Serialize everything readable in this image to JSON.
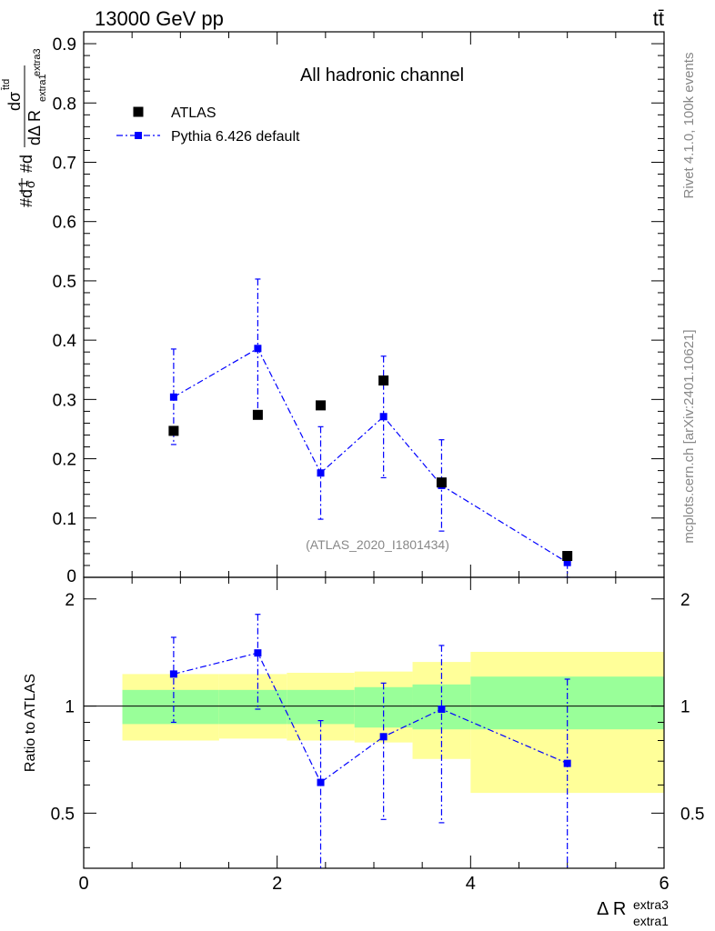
{
  "header": {
    "energy_label": "13000 GeV pp",
    "process_label": "tt̄"
  },
  "side_labels": {
    "rivet": "Rivet 4.1.0,  100k events",
    "mcplots": "mcplots.cern.ch [arXiv:2401.10621]"
  },
  "chart_data": [
    {
      "type": "scatter",
      "title": "All hadronic channel",
      "watermark": "(ATLAS_2020_I1801434)",
      "ylabel": "#d₁/σ#d dσᵗᵗᵈ / dΔ R",
      "ylabel_parts": {
        "prefix": "#d",
        "frac1_num": "1",
        "frac1_den": "σ",
        "mid": "#d",
        "frac2_num": "dσ",
        "frac2_num_sup": "t̄td",
        "frac2_den": "dΔ R",
        "frac2_den_sub": "extra1",
        "frac2_den_sup": "extra3"
      },
      "xlim": [
        0,
        6
      ],
      "ylim": [
        0,
        0.92
      ],
      "yticks": [
        0.1,
        0.2,
        0.3,
        0.4,
        0.5,
        0.6,
        0.7,
        0.8,
        0.9
      ],
      "ytick_labels": [
        "0.1",
        "0.2",
        "0.3",
        "0.4",
        "0.5",
        "0.6",
        "0.7",
        "0.8",
        "0.9"
      ],
      "ytick_zero_label": "0",
      "legend": {
        "position": "top-left",
        "entries": [
          "ATLAS",
          "Pythia 6.426 default"
        ]
      },
      "series": [
        {
          "name": "ATLAS",
          "color": "#000000",
          "marker": "square",
          "x": [
            0.93,
            1.8,
            2.45,
            3.1,
            3.7,
            5.0
          ],
          "y": [
            0.247,
            0.274,
            0.29,
            0.332,
            0.16,
            0.036
          ]
        },
        {
          "name": "Pythia 6.426 default",
          "color": "#0000ff",
          "marker": "square",
          "line": "dash-dot",
          "x": [
            0.93,
            1.8,
            2.45,
            3.1,
            3.7,
            5.0
          ],
          "y": [
            0.304,
            0.386,
            0.176,
            0.271,
            0.155,
            0.025
          ],
          "err_low": [
            0.08,
            0.105,
            0.078,
            0.103,
            0.077,
            0.025
          ],
          "err_high": [
            0.081,
            0.117,
            0.078,
            0.102,
            0.077,
            0.0
          ]
        }
      ]
    },
    {
      "type": "scatter",
      "ylabel": "Ratio to ATLAS",
      "xlabel": "Δ R",
      "xlabel_sub": "extra1",
      "xlabel_sup": "extra3",
      "xlim": [
        0,
        6
      ],
      "ylim": [
        0.35,
        2.3
      ],
      "xticks": [
        0,
        2,
        4,
        6
      ],
      "xtick_labels": [
        "0",
        "2",
        "4",
        "6"
      ],
      "yticks": [
        0.5,
        1,
        2
      ],
      "ytick_labels": [
        "0.5",
        "1",
        "2"
      ],
      "reference_line": 1,
      "bands": {
        "edges": [
          0.4,
          1.4,
          2.1,
          2.8,
          3.4,
          4.0,
          6.0
        ],
        "inner_low": [
          0.89,
          0.89,
          0.89,
          0.87,
          0.86,
          0.86
        ],
        "inner_high": [
          1.11,
          1.11,
          1.11,
          1.13,
          1.15,
          1.21
        ],
        "outer_low": [
          0.8,
          0.81,
          0.8,
          0.79,
          0.71,
          0.57
        ],
        "outer_high": [
          1.23,
          1.23,
          1.24,
          1.25,
          1.33,
          1.42
        ],
        "inner_color": "#99ff99",
        "outer_color": "#ffff99"
      },
      "series": [
        {
          "name": "Pythia 6.426 default",
          "color": "#0000ff",
          "x": [
            0.93,
            1.8,
            2.45,
            3.1,
            3.7,
            5.0
          ],
          "y": [
            1.23,
            1.41,
            0.61,
            0.82,
            0.98,
            0.69
          ],
          "err_low": [
            0.33,
            0.43,
            0.3,
            0.34,
            0.51,
            0.44
          ],
          "err_high": [
            0.33,
            0.4,
            0.3,
            0.34,
            0.5,
            0.5
          ]
        }
      ]
    }
  ]
}
